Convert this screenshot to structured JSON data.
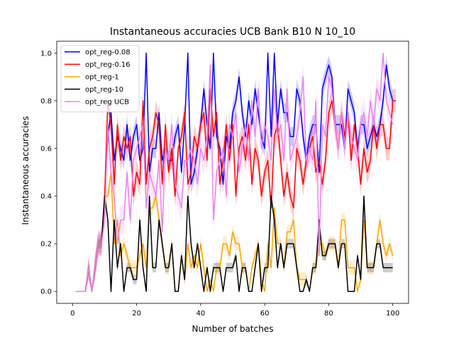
{
  "chart_data": {
    "type": "line",
    "title": "Instantaneous accuracies UCB Bank B10 N 10_10",
    "xlabel": "Number of batches",
    "ylabel": "Instantaneous accuracies",
    "xlim": [
      -4.95,
      104.95
    ],
    "ylim": [
      -0.05,
      1.05
    ],
    "xticks": [
      0,
      20,
      40,
      60,
      80,
      100
    ],
    "yticks": [
      0.0,
      0.2,
      0.4,
      0.6,
      0.8,
      1.0
    ],
    "xtick_labels": [
      "0",
      "20",
      "40",
      "60",
      "80",
      "100"
    ],
    "ytick_labels": [
      "0.0",
      "0.2",
      "0.4",
      "0.6",
      "0.8",
      "1.0"
    ],
    "grid": false,
    "legend_position": "top-left",
    "x_start": 1,
    "series": [
      {
        "name": "opt_reg-0.08",
        "color": "#0000ff",
        "values": [
          0,
          0,
          0,
          0,
          0.1,
          0,
          0.1,
          0.2,
          0.2,
          0.4,
          0.65,
          0.75,
          0.55,
          0.65,
          0.6,
          0.55,
          0.7,
          0.55,
          0.65,
          0.7,
          0.55,
          0.6,
          1.0,
          0.5,
          0.6,
          0.6,
          0.75,
          0.55,
          0.6,
          0.55,
          0.55,
          0.65,
          0.7,
          0.5,
          0.7,
          1.0,
          0.45,
          0.5,
          0.6,
          0.7,
          0.85,
          0.7,
          0.6,
          1.0,
          0.65,
          0.6,
          0.45,
          0.65,
          0.6,
          0.75,
          0.8,
          0.9,
          0.75,
          0.65,
          0.8,
          0.7,
          0.85,
          0.75,
          0.65,
          0.6,
          1.0,
          0.65,
          1.0,
          0.7,
          0.85,
          0.75,
          0.75,
          0.65,
          0.65,
          0.85,
          0.8,
          0.65,
          0.55,
          0.65,
          0.7,
          0.7,
          0.5,
          0.85,
          0.9,
          0.95,
          0.9,
          0.7,
          0.7,
          0.7,
          0.6,
          0.85,
          0.8,
          0.75,
          0.6,
          0.7,
          0.7,
          0.6,
          0.65,
          0.7,
          0.65,
          0.7,
          0.8,
          0.95,
          0.85,
          0.8
        ],
        "band": 0.04
      },
      {
        "name": "opt_reg-0.16",
        "color": "#ff0000",
        "values": [
          0,
          0,
          0,
          0,
          0.1,
          0,
          0.1,
          0.2,
          0.2,
          0.4,
          0.8,
          0.7,
          0.45,
          0.7,
          0.55,
          0.65,
          0.6,
          0.65,
          0.4,
          0.5,
          0.45,
          0.8,
          0.45,
          0.6,
          0.65,
          0.75,
          0.7,
          0.45,
          0.7,
          0.5,
          0.6,
          0.4,
          0.6,
          0.65,
          0.75,
          0.45,
          0.5,
          0.65,
          0.6,
          0.7,
          0.75,
          0.55,
          0.85,
          0.65,
          0.75,
          0.45,
          0.55,
          0.7,
          0.55,
          0.7,
          0.4,
          0.6,
          0.65,
          0.55,
          0.7,
          0.45,
          0.6,
          0.55,
          0.4,
          0.5,
          0.55,
          0.35,
          0.65,
          0.7,
          0.55,
          0.4,
          0.5,
          0.4,
          0.35,
          0.6,
          0.55,
          0.45,
          0.55,
          0.6,
          0.65,
          0.5,
          0.55,
          0.45,
          0.55,
          0.75,
          0.8,
          0.7,
          0.6,
          0.75,
          0.65,
          0.75,
          0.55,
          0.7,
          0.6,
          0.45,
          0.6,
          0.5,
          0.55,
          0.7,
          0.6,
          0.7,
          0.7,
          0.6,
          0.6,
          0.8,
          0.8
        ],
        "band": 0.05
      },
      {
        "name": "opt_reg-1",
        "color": "#ffa500",
        "values": [
          0,
          0,
          0,
          0,
          0.1,
          0,
          0.1,
          0.2,
          0.2,
          0.4,
          0.4,
          0.5,
          0.2,
          0.3,
          0.15,
          0.2,
          0.15,
          0.1,
          0.1,
          0.1,
          0.15,
          0.2,
          0.1,
          0.35,
          0.35,
          0.4,
          0.3,
          0.2,
          0.1,
          0.1,
          0.2,
          0,
          0,
          0.15,
          0.05,
          0.2,
          0.1,
          0.15,
          0.1,
          0.2,
          0.1,
          0,
          0.05,
          0,
          0.1,
          0.1,
          0.2,
          0.2,
          0.15,
          0.25,
          0.2,
          0.2,
          0.1,
          0.1,
          0,
          0.1,
          0.15,
          0.2,
          0.05,
          0,
          0.2,
          0.1,
          0.35,
          0.2,
          0.2,
          0.1,
          0.25,
          0.25,
          0.3,
          0.1,
          0.05,
          0.05,
          0.05,
          0,
          0.1,
          0.1,
          0.2,
          0.2,
          0.15,
          0.2,
          0.2,
          0.2,
          0.1,
          0.3,
          0.3,
          0.1,
          0.1,
          0.1,
          0,
          0.05,
          0.3,
          0.1,
          0.1,
          0.1,
          0.2,
          0.3,
          0.2,
          0.15,
          0.2,
          0.15
        ],
        "band": 0.03
      },
      {
        "name": "opt_reg-10",
        "color": "#000000",
        "values": [
          0,
          0,
          0,
          0,
          0.1,
          0,
          0.1,
          0.2,
          0.2,
          0.4,
          0.3,
          0,
          0.3,
          0.1,
          0.2,
          0,
          0.1,
          0.1,
          0.05,
          0.05,
          0.3,
          0.1,
          0,
          0.4,
          0.1,
          0.1,
          0.3,
          0.2,
          0.1,
          0.1,
          0.2,
          0,
          0,
          0.15,
          0.05,
          0.4,
          0.2,
          0.1,
          0.2,
          0.1,
          0,
          0.1,
          0,
          0.1,
          0.1,
          0.1,
          0,
          0.1,
          0.1,
          0.1,
          0.15,
          0,
          0.1,
          0.1,
          0,
          0,
          0.1,
          0.2,
          0,
          0.1,
          0.1,
          0.4,
          0.3,
          0.1,
          0.2,
          0.1,
          0.2,
          0.2,
          0.2,
          0.1,
          0,
          0,
          0.05,
          0,
          0.1,
          0.1,
          0.3,
          0.15,
          0.15,
          0.2,
          0.2,
          0.2,
          0.1,
          0.2,
          0.2,
          0,
          0,
          0,
          0.15,
          0.05,
          0.4,
          0.1,
          0.1,
          0.1,
          0.2,
          0.2,
          0.1,
          0.1,
          0.1,
          0.1
        ],
        "band": 0.02
      },
      {
        "name": "opt_reg UCB",
        "color": "#ee82ee",
        "values": [
          0,
          0,
          0,
          0,
          0.1,
          0,
          0.1,
          0.2,
          0.2,
          0.3,
          0.7,
          0.5,
          0.4,
          0.2,
          0.3,
          0.3,
          0.5,
          0.3,
          0.55,
          0.6,
          0.65,
          0.7,
          0.35,
          0.5,
          0.45,
          0.4,
          0.55,
          0.25,
          0.6,
          0.55,
          0.7,
          0.45,
          0.4,
          0.35,
          0.55,
          0.55,
          0.6,
          0.55,
          0.45,
          0.6,
          0.55,
          0.65,
          0.95,
          0.3,
          0.5,
          0.55,
          0.6,
          0.4,
          0.7,
          0.65,
          0.75,
          0.5,
          0.6,
          0.7,
          0.55,
          0.8,
          0.65,
          0.85,
          0.6,
          0.7,
          0.65,
          0.55,
          0.85,
          0.65,
          0.7,
          0.55,
          0.85,
          0.55,
          0.6,
          0.65,
          0.75,
          0.9,
          0.55,
          0.6,
          0.55,
          0.8,
          0.15,
          0.7,
          0.65,
          0.9,
          0.85,
          0.7,
          0.6,
          0.75,
          0.6,
          0.75,
          0.65,
          0.6,
          0.55,
          0.7,
          0.75,
          0.65,
          0.8,
          0.7,
          0.85,
          0.8,
          1.0,
          0.8,
          0.75,
          0.7
        ],
        "band": 0.06
      }
    ]
  }
}
